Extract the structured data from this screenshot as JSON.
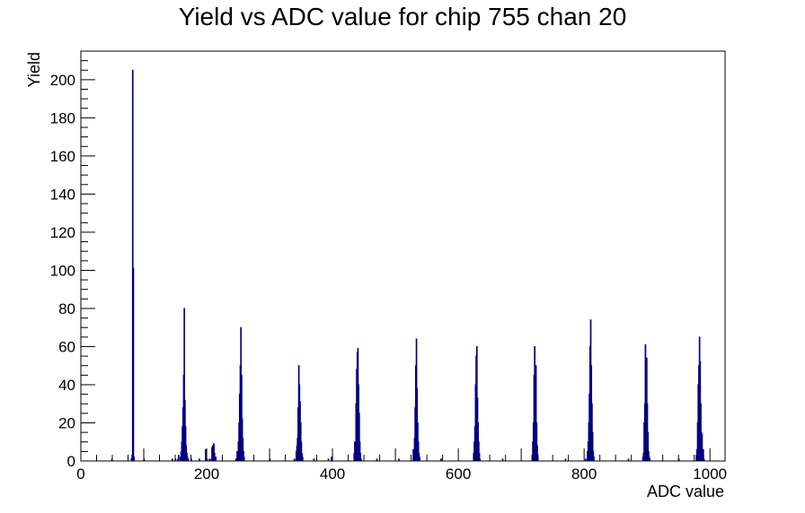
{
  "chart_data": {
    "type": "bar",
    "title": "Yield vs ADC value for chip 755 chan 20",
    "xlabel": "ADC value",
    "ylabel": "Yield",
    "xlim": [
      0,
      1024
    ],
    "ylim": [
      0,
      215
    ],
    "x_ticks": [
      0,
      200,
      400,
      600,
      800,
      1000
    ],
    "y_ticks": [
      0,
      20,
      40,
      60,
      80,
      100,
      120,
      140,
      160,
      180,
      200
    ],
    "x_tick_labels": [
      "0",
      "200",
      "400",
      "600",
      "800",
      "1000"
    ],
    "y_tick_labels": [
      "0",
      "20",
      "40",
      "60",
      "80",
      "100",
      "120",
      "140",
      "160",
      "180",
      "200"
    ],
    "bin_width": 1,
    "series_color": "#000080",
    "grid": false,
    "legend": false,
    "bins": [
      [
        49,
        1
      ],
      [
        80,
        1
      ],
      [
        81,
        3
      ],
      [
        82,
        205
      ],
      [
        83,
        101
      ],
      [
        84,
        2
      ],
      [
        100,
        1
      ],
      [
        145,
        1
      ],
      [
        150,
        1
      ],
      [
        154,
        1
      ],
      [
        155,
        3
      ],
      [
        158,
        2
      ],
      [
        159,
        5
      ],
      [
        160,
        10
      ],
      [
        161,
        18
      ],
      [
        162,
        28
      ],
      [
        163,
        45
      ],
      [
        164,
        80
      ],
      [
        165,
        32
      ],
      [
        166,
        18
      ],
      [
        167,
        8
      ],
      [
        168,
        4
      ],
      [
        169,
        2
      ],
      [
        170,
        1
      ],
      [
        175,
        1
      ],
      [
        188,
        1
      ],
      [
        198,
        6
      ],
      [
        200,
        1
      ],
      [
        204,
        1
      ],
      [
        207,
        1
      ],
      [
        208,
        7
      ],
      [
        209,
        8
      ],
      [
        210,
        3
      ],
      [
        211,
        9
      ],
      [
        212,
        4
      ],
      [
        213,
        1
      ],
      [
        214,
        2
      ],
      [
        246,
        1
      ],
      [
        248,
        5
      ],
      [
        249,
        3
      ],
      [
        250,
        10
      ],
      [
        251,
        20
      ],
      [
        252,
        35
      ],
      [
        253,
        50
      ],
      [
        254,
        70
      ],
      [
        255,
        45
      ],
      [
        256,
        22
      ],
      [
        257,
        12
      ],
      [
        258,
        5
      ],
      [
        259,
        2
      ],
      [
        300,
        1
      ],
      [
        339,
        1
      ],
      [
        342,
        5
      ],
      [
        343,
        8
      ],
      [
        344,
        12
      ],
      [
        345,
        28
      ],
      [
        346,
        50
      ],
      [
        347,
        40
      ],
      [
        348,
        31
      ],
      [
        349,
        20
      ],
      [
        350,
        10
      ],
      [
        351,
        4
      ],
      [
        352,
        2
      ],
      [
        370,
        1
      ],
      [
        393,
        1
      ],
      [
        398,
        2
      ],
      [
        434,
        4
      ],
      [
        435,
        10
      ],
      [
        436,
        8
      ],
      [
        437,
        30
      ],
      [
        438,
        48
      ],
      [
        439,
        57
      ],
      [
        440,
        59
      ],
      [
        441,
        40
      ],
      [
        442,
        25
      ],
      [
        443,
        10
      ],
      [
        444,
        4
      ],
      [
        445,
        1
      ],
      [
        470,
        1
      ],
      [
        505,
        1
      ],
      [
        528,
        6
      ],
      [
        529,
        2
      ],
      [
        530,
        12
      ],
      [
        531,
        28
      ],
      [
        532,
        50
      ],
      [
        533,
        64
      ],
      [
        534,
        38
      ],
      [
        535,
        20
      ],
      [
        536,
        10
      ],
      [
        537,
        4
      ],
      [
        538,
        2
      ],
      [
        572,
        1
      ],
      [
        624,
        4
      ],
      [
        625,
        10
      ],
      [
        626,
        18
      ],
      [
        627,
        40
      ],
      [
        628,
        55
      ],
      [
        629,
        60
      ],
      [
        630,
        33
      ],
      [
        631,
        20
      ],
      [
        632,
        10
      ],
      [
        633,
        4
      ],
      [
        634,
        1
      ],
      [
        670,
        1
      ],
      [
        717,
        3
      ],
      [
        718,
        10
      ],
      [
        719,
        20
      ],
      [
        720,
        45
      ],
      [
        721,
        60
      ],
      [
        722,
        30
      ],
      [
        723,
        50
      ],
      [
        724,
        20
      ],
      [
        725,
        8
      ],
      [
        726,
        3
      ],
      [
        770,
        1
      ],
      [
        802,
        1
      ],
      [
        805,
        5
      ],
      [
        806,
        10
      ],
      [
        807,
        20
      ],
      [
        808,
        35
      ],
      [
        809,
        60
      ],
      [
        810,
        74
      ],
      [
        811,
        50
      ],
      [
        812,
        30
      ],
      [
        813,
        15
      ],
      [
        814,
        5
      ],
      [
        815,
        2
      ],
      [
        870,
        1
      ],
      [
        893,
        2
      ],
      [
        894,
        4
      ],
      [
        895,
        20
      ],
      [
        896,
        30
      ],
      [
        897,
        61
      ],
      [
        898,
        40
      ],
      [
        899,
        54
      ],
      [
        900,
        30
      ],
      [
        901,
        15
      ],
      [
        902,
        5
      ],
      [
        903,
        2
      ],
      [
        904,
        1
      ],
      [
        950,
        1
      ],
      [
        978,
        3
      ],
      [
        979,
        6
      ],
      [
        980,
        20
      ],
      [
        981,
        40
      ],
      [
        982,
        50
      ],
      [
        983,
        65
      ],
      [
        984,
        52
      ],
      [
        985,
        30
      ],
      [
        986,
        15
      ],
      [
        987,
        14
      ],
      [
        988,
        4
      ],
      [
        989,
        6
      ],
      [
        990,
        1
      ]
    ]
  }
}
